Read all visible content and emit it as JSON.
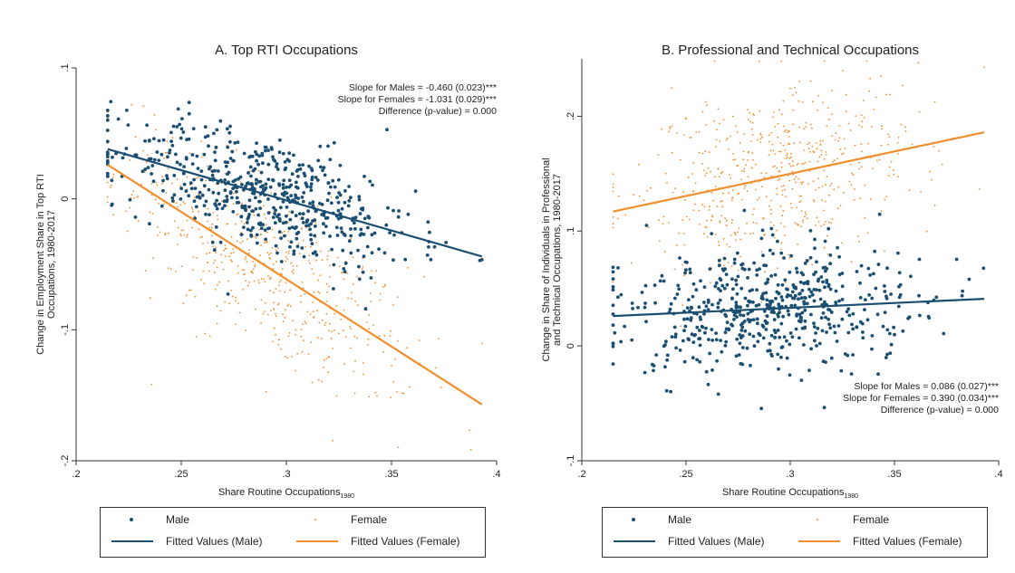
{
  "colors": {
    "male": "#1b4f72",
    "female": "#f28e2b",
    "axis": "#333333"
  },
  "chart_data": [
    {
      "type": "scatter",
      "title": "A. Top RTI Occupations",
      "xlabel": "Share Routine Occupations",
      "xlabel_sub": "1980",
      "ylabel_line1": "Change in Employment Share in Top RTI",
      "ylabel_line2": "Occupations, 1980-2017",
      "xlim": [
        0.2,
        0.4
      ],
      "ylim": [
        -0.2,
        0.1
      ],
      "x_ticks": [
        0.2,
        0.25,
        0.3,
        0.35,
        0.4
      ],
      "x_tick_labels": [
        ".2",
        ".25",
        ".3",
        ".35",
        ".4"
      ],
      "y_ticks": [
        -0.2,
        -0.1,
        0,
        0.1
      ],
      "y_tick_labels": [
        "-.2",
        "-.1",
        "0",
        ".1"
      ],
      "grid": false,
      "annotations": [
        "Slope for Males = -0.460 (0.023)***",
        "Slope for Females = -1.031 (0.029)***",
        "Difference (p-value) = 0.000"
      ],
      "annotation_position": "top-right",
      "series": [
        {
          "name": "Fitted Values (Male)",
          "kind": "line",
          "x": [
            0.215,
            0.393
          ],
          "y": [
            0.038,
            -0.044
          ]
        },
        {
          "name": "Fitted Values (Female)",
          "kind": "line",
          "x": [
            0.215,
            0.393
          ],
          "y": [
            0.026,
            -0.157
          ]
        }
      ],
      "scatter_summary": {
        "male": {
          "n": 560,
          "x_range": [
            0.215,
            0.393
          ],
          "slope": -0.46,
          "center_x": 0.29,
          "center_y": 0.004,
          "spread": 0.022
        },
        "female": {
          "n": 560,
          "x_range": [
            0.215,
            0.393
          ],
          "slope": -1.031,
          "center_x": 0.29,
          "center_y": -0.051,
          "spread": 0.035
        }
      },
      "legend": [
        "Male",
        "Female",
        "Fitted Values (Male)",
        "Fitted Values (Female)"
      ],
      "legend_position": "bottom"
    },
    {
      "type": "scatter",
      "title": "B. Professional and Technical Occupations",
      "xlabel": "Share Routine Occupations",
      "xlabel_sub": "1980",
      "ylabel_line1": "Change in Share of Individuals in Professional",
      "ylabel_line2": "and Technical Occupations, 1980-2017",
      "xlim": [
        0.2,
        0.4
      ],
      "ylim": [
        -0.1,
        0.25
      ],
      "x_ticks": [
        0.2,
        0.25,
        0.3,
        0.35,
        0.4
      ],
      "x_tick_labels": [
        ".2",
        ".25",
        ".3",
        ".35",
        ".4"
      ],
      "y_ticks": [
        -0.1,
        0,
        0.1,
        0.2
      ],
      "y_tick_labels": [
        "-.1",
        "0",
        ".1",
        ".2"
      ],
      "grid": false,
      "annotations": [
        "Slope for Males = 0.086 (0.027)***",
        "Slope for Females = 0.390 (0.034)***",
        "Difference (p-value) = 0.000"
      ],
      "annotation_position": "bottom-right",
      "series": [
        {
          "name": "Fitted Values (Male)",
          "kind": "line",
          "x": [
            0.215,
            0.393
          ],
          "y": [
            0.026,
            0.041
          ]
        },
        {
          "name": "Fitted Values (Female)",
          "kind": "line",
          "x": [
            0.215,
            0.393
          ],
          "y": [
            0.117,
            0.186
          ]
        }
      ],
      "scatter_summary": {
        "male": {
          "n": 560,
          "x_range": [
            0.215,
            0.393
          ],
          "slope": 0.086,
          "center_x": 0.29,
          "center_y": 0.032,
          "spread": 0.028
        },
        "female": {
          "n": 560,
          "x_range": [
            0.215,
            0.393
          ],
          "slope": 0.39,
          "center_x": 0.29,
          "center_y": 0.146,
          "spread": 0.04
        }
      },
      "legend": [
        "Male",
        "Female",
        "Fitted Values (Male)",
        "Fitted Values (Female)"
      ],
      "legend_position": "bottom"
    }
  ]
}
